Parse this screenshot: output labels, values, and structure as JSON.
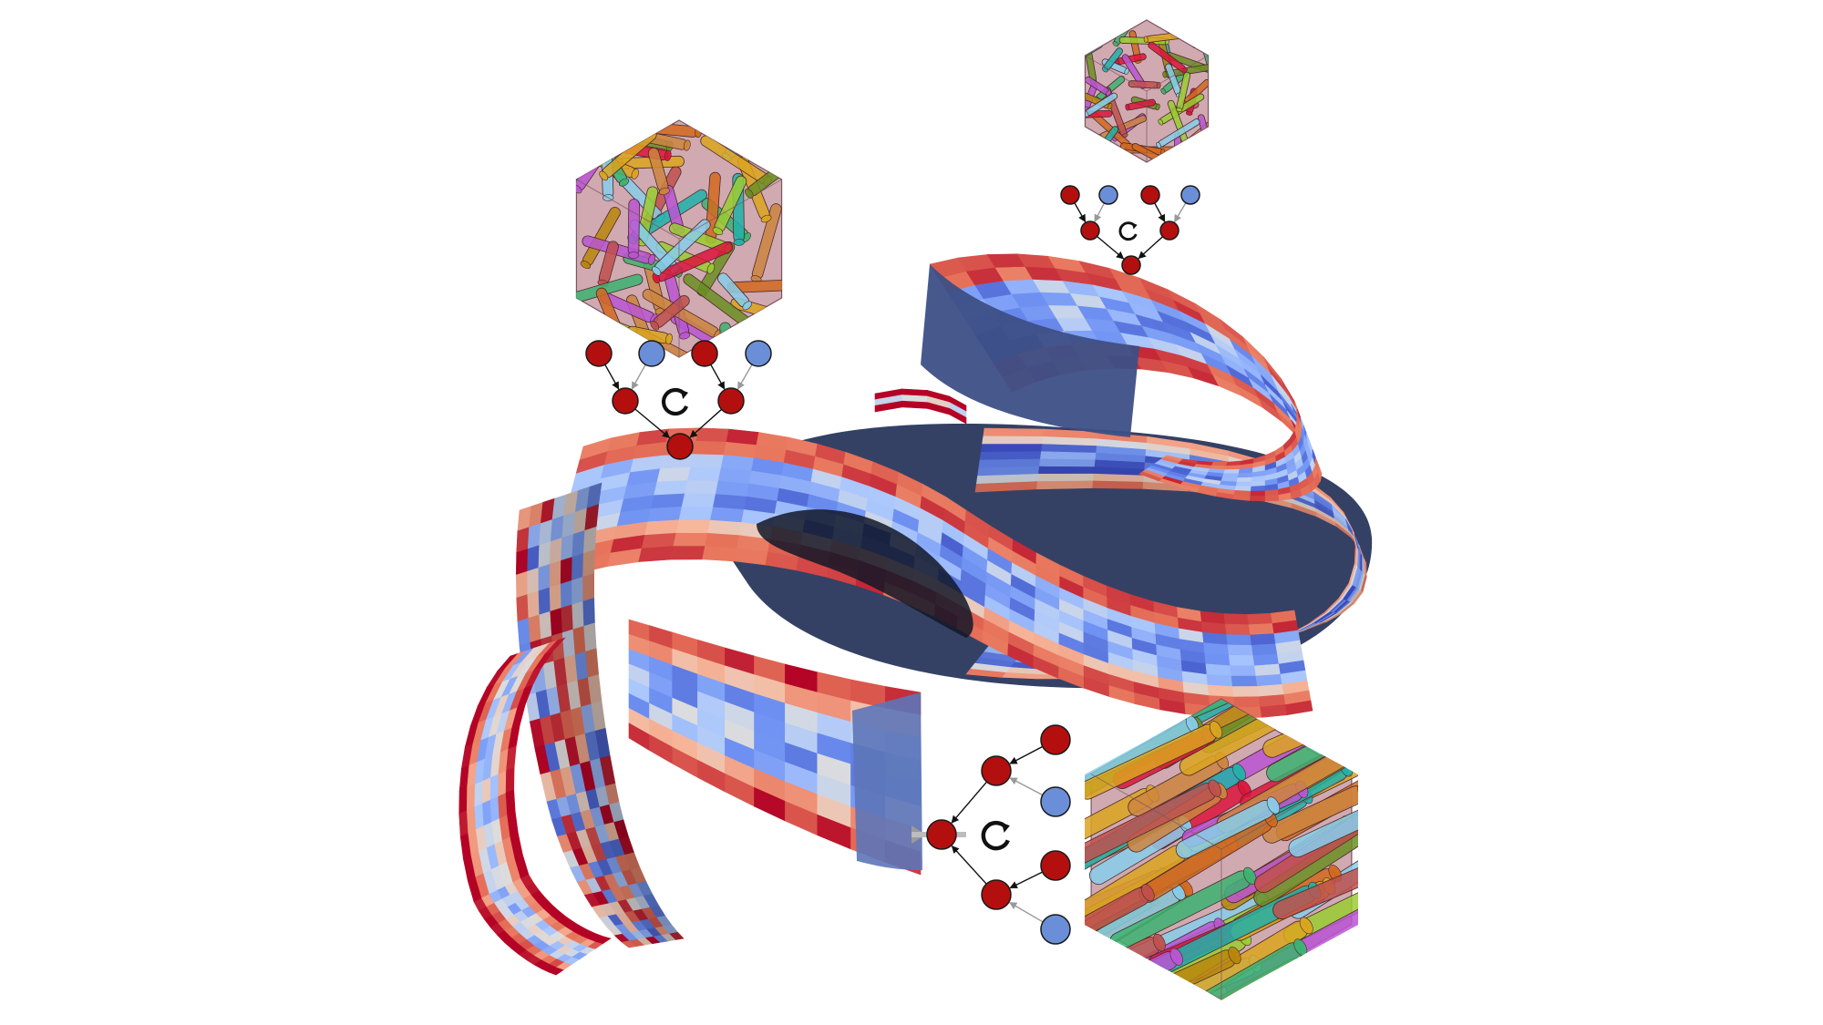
{
  "figure": {
    "background": "#ffffff",
    "colormap": [
      "#3b4cc0",
      "#6f92f3",
      "#aac7fd",
      "#dddddd",
      "#f7b89c",
      "#e7745b",
      "#b40426"
    ],
    "edge_color": "#2a3350",
    "node_colors": {
      "active": "#b40f0f",
      "inactive": "#6a8fd8"
    },
    "cylinder_colors": [
      "#c0504d",
      "#d2691e",
      "#b8860b",
      "#9acd32",
      "#3cb371",
      "#20b2aa",
      "#87ceeb",
      "#ba55d3",
      "#dc143c",
      "#daa520",
      "#6b8e23",
      "#cd853f"
    ],
    "cube_tint": "#c99aa3",
    "icons": [
      "rotation-arrow-icon",
      "hexagon-cube-icon",
      "graph-node-icon"
    ]
  }
}
